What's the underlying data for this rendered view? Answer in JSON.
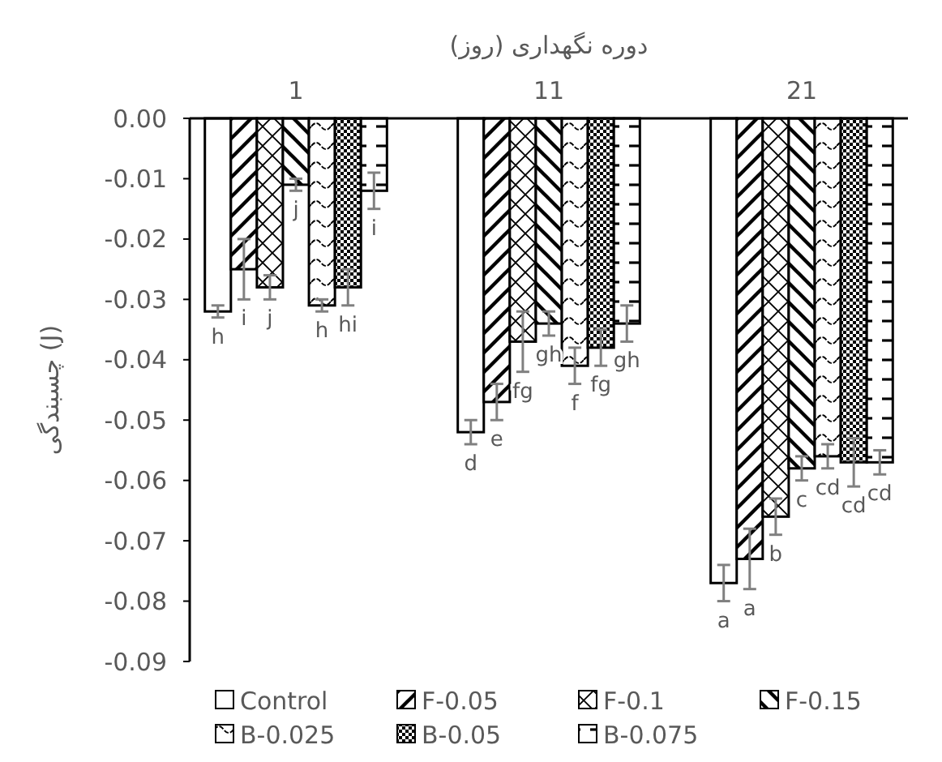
{
  "chart_data": {
    "type": "bar",
    "xlabel": "دوره نگهداری (روز)",
    "ylabel": "چسبندگی (J)",
    "categories": [
      "1",
      "11",
      "21"
    ],
    "ylim": [
      -0.09,
      0
    ],
    "yticks": [
      {
        "value": 0,
        "label": "0.00"
      },
      {
        "value": -0.01,
        "label": "-0.01"
      },
      {
        "value": -0.02,
        "label": "-0.02"
      },
      {
        "value": -0.03,
        "label": "-0.03"
      },
      {
        "value": -0.04,
        "label": "-0.04"
      },
      {
        "value": -0.05,
        "label": "-0.05"
      },
      {
        "value": -0.06,
        "label": "-0.06"
      },
      {
        "value": -0.07,
        "label": "-0.07"
      },
      {
        "value": -0.08,
        "label": "-0.08"
      },
      {
        "value": -0.09,
        "label": "-0.09"
      }
    ],
    "legend": "bottom",
    "grid": false,
    "series": [
      {
        "name": "Control",
        "color": "#ffffff",
        "values": [
          -0.032,
          -0.052,
          -0.077
        ],
        "errors": [
          0.001,
          0.002,
          0.003
        ],
        "value_labels": [
          "h",
          "d",
          "a"
        ]
      },
      {
        "name": "F-0.05",
        "color": "#000000",
        "values": [
          -0.025,
          -0.047,
          -0.073
        ],
        "errors": [
          0.005,
          0.003,
          0.005
        ],
        "value_labels": [
          "i",
          "e",
          "a"
        ]
      },
      {
        "name": "F-0.1",
        "color": "#000000",
        "values": [
          -0.028,
          -0.037,
          -0.066
        ],
        "errors": [
          0.002,
          0.005,
          0.003
        ],
        "value_labels": [
          "j",
          "fg",
          "b"
        ]
      },
      {
        "name": "F-0.15",
        "color": "#000000",
        "values": [
          -0.011,
          -0.034,
          -0.058
        ],
        "errors": [
          0.001,
          0.002,
          0.002
        ],
        "value_labels": [
          "j",
          "gh",
          "c"
        ]
      },
      {
        "name": "B-0.025",
        "color": "#000000",
        "values": [
          -0.031,
          -0.041,
          -0.056
        ],
        "errors": [
          0.001,
          0.003,
          0.002
        ],
        "value_labels": [
          "h",
          "f",
          "cd"
        ]
      },
      {
        "name": "B-0.05",
        "color": "#000000",
        "values": [
          -0.028,
          -0.038,
          -0.057
        ],
        "errors": [
          0.003,
          0.003,
          0.004
        ],
        "value_labels": [
          "hi",
          "fg",
          "cd"
        ]
      },
      {
        "name": "B-0.075",
        "color": "#000000",
        "values": [
          -0.012,
          -0.034,
          -0.057
        ],
        "errors": [
          0.003,
          0.003,
          0.002
        ],
        "value_labels": [
          "i",
          "gh",
          "cd"
        ]
      }
    ]
  }
}
